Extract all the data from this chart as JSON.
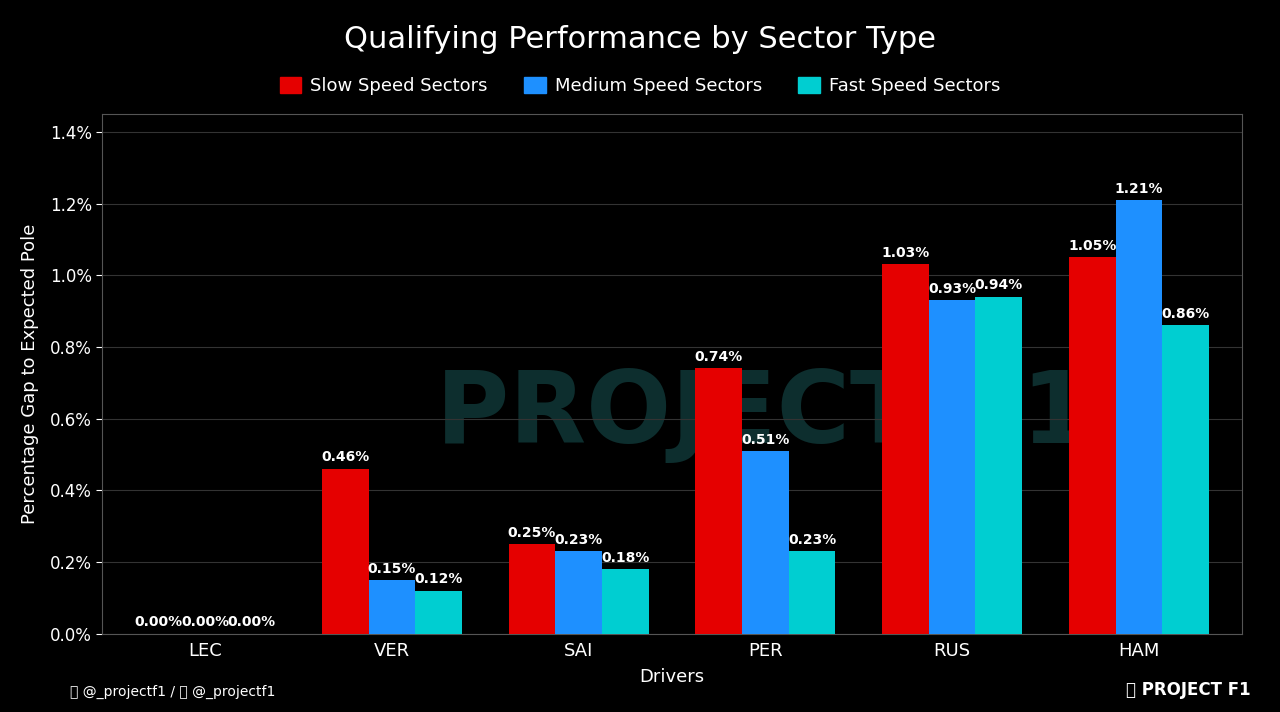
{
  "title": "Qualifying Performance by Sector Type",
  "xlabel": "Drivers",
  "ylabel": "Percentage Gap to Expected Pole",
  "background_color": "#000000",
  "grid_color": "#333333",
  "text_color": "#ffffff",
  "drivers": [
    "LEC",
    "VER",
    "SAI",
    "PER",
    "RUS",
    "HAM"
  ],
  "slow_values": [
    0.0,
    0.46,
    0.25,
    0.74,
    1.03,
    1.05
  ],
  "medium_values": [
    0.0,
    0.15,
    0.23,
    0.51,
    0.93,
    1.21
  ],
  "fast_values": [
    0.0,
    0.12,
    0.18,
    0.23,
    0.94,
    0.86
  ],
  "slow_color": "#e50000",
  "medium_color": "#1e90ff",
  "fast_color": "#00ced1",
  "bar_width": 0.25,
  "ylim": [
    0,
    1.45
  ],
  "yticks": [
    0.0,
    0.2,
    0.4,
    0.6,
    0.8,
    1.0,
    1.2,
    1.4
  ],
  "legend_labels": [
    "Slow Speed Sectors",
    "Medium Speed Sectors",
    "Fast Speed Sectors"
  ],
  "watermark_color": "#0d2e2e",
  "title_fontsize": 22,
  "label_fontsize": 13,
  "tick_fontsize": 12,
  "bar_label_fontsize": 10,
  "social_text_left": "ⓞ @_projectf1 /  @_projectf1",
  "social_text_right": "PROJECT F1"
}
